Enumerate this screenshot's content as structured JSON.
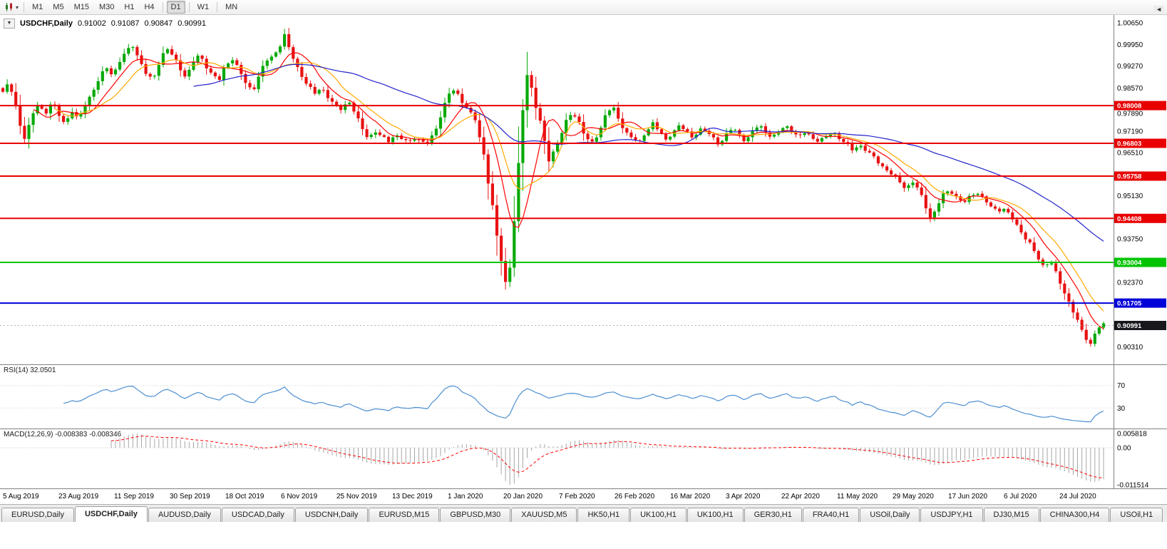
{
  "icons": {
    "collapse": "▼",
    "caret": "▾",
    "tab_scroll_left": "◄"
  },
  "toolbar": {
    "timeframes": [
      "M1",
      "M5",
      "M15",
      "M30",
      "H1",
      "H4",
      "D1",
      "W1",
      "MN"
    ],
    "active_timeframe": "D1"
  },
  "chart_header": {
    "title": "USDCHF,Daily",
    "open": "0.91002",
    "high": "0.91087",
    "low": "0.90847",
    "close": "0.90991"
  },
  "colors": {
    "candle_up": "#07a907",
    "candle_down": "#e81212",
    "macd_hist": "#a6a6a6",
    "separator": "#808080",
    "axis_text": "#000000"
  },
  "chart_data": {
    "type": "candlestick",
    "symbol": "USDCHF",
    "timeframe": "Daily",
    "candle_count": 255,
    "price_range": {
      "top": 1.009,
      "bottom": 0.8975
    },
    "price_axis_labels": [
      "1.00650",
      "0.99950",
      "0.99270",
      "0.98570",
      "0.97890",
      "0.97190",
      "0.96510",
      "0.95130",
      "0.93750",
      "0.92370",
      "0.90310"
    ],
    "hlines": [
      {
        "price": 0.98008,
        "label": "0.98008",
        "color": "#e80000"
      },
      {
        "price": 0.96803,
        "label": "0.96803",
        "color": "#e80000"
      },
      {
        "price": 0.95758,
        "label": "0.95758",
        "color": "#e80000"
      },
      {
        "price": 0.94408,
        "label": "0.94408",
        "color": "#e80000"
      },
      {
        "price": 0.93004,
        "label": "0.93004",
        "color": "#00c400"
      },
      {
        "price": 0.91705,
        "label": "0.91705",
        "color": "#0000d8"
      }
    ],
    "current_price": {
      "price": 0.90991,
      "label": "0.90991",
      "color": "#17171d"
    },
    "date_labels": [
      "5 Aug 2019",
      "23 Aug 2019",
      "11 Sep 2019",
      "30 Sep 2019",
      "18 Oct 2019",
      "6 Nov 2019",
      "25 Nov 2019",
      "13 Dec 2019",
      "1 Jan 2020",
      "20 Jan 2020",
      "7 Feb 2020",
      "26 Feb 2020",
      "16 Mar 2020",
      "3 Apr 2020",
      "22 Apr 2020",
      "11 May 2020",
      "29 May 2020",
      "17 Jun 2020",
      "6 Jul 2020",
      "24 Jul 2020"
    ],
    "ma": [
      {
        "period": 8,
        "color": "#ff0000"
      },
      {
        "period": 13,
        "color": "#ffaa00"
      },
      {
        "period": 45,
        "color": "#2222cc"
      }
    ],
    "rsi": {
      "label": "RSI(14) 32.0501",
      "period": 14,
      "levels": [
        70,
        30
      ],
      "color": "#4d8fd1"
    },
    "macd": {
      "label": "MACD(12,26,9) -0.008383 -0.008346",
      "fast": 12,
      "slow": 26,
      "signal": 9,
      "axis_labels": [
        "0.005818",
        "0.00",
        "-0.011514"
      ]
    },
    "price_path": [
      [
        0.0,
        0.9845
      ],
      [
        0.005,
        0.987
      ],
      [
        0.01,
        0.9825
      ],
      [
        0.015,
        0.9745
      ],
      [
        0.02,
        0.9695
      ],
      [
        0.026,
        0.9765
      ],
      [
        0.032,
        0.9805
      ],
      [
        0.038,
        0.9775
      ],
      [
        0.044,
        0.9812
      ],
      [
        0.05,
        0.9772
      ],
      [
        0.056,
        0.9742
      ],
      [
        0.062,
        0.9788
      ],
      [
        0.068,
        0.9752
      ],
      [
        0.074,
        0.9802
      ],
      [
        0.08,
        0.9842
      ],
      [
        0.087,
        0.9888
      ],
      [
        0.093,
        0.9922
      ],
      [
        0.099,
        0.9898
      ],
      [
        0.105,
        0.9942
      ],
      [
        0.111,
        0.9972
      ],
      [
        0.117,
        0.9992
      ],
      [
        0.123,
        0.9948
      ],
      [
        0.129,
        0.9902
      ],
      [
        0.135,
        0.9878
      ],
      [
        0.141,
        0.9942
      ],
      [
        0.147,
        0.9988
      ],
      [
        0.153,
        0.9958
      ],
      [
        0.159,
        0.9922
      ],
      [
        0.165,
        0.9892
      ],
      [
        0.171,
        0.9938
      ],
      [
        0.177,
        0.9962
      ],
      [
        0.183,
        0.9928
      ],
      [
        0.189,
        0.9898
      ],
      [
        0.195,
        0.9882
      ],
      [
        0.201,
        0.9932
      ],
      [
        0.207,
        0.9952
      ],
      [
        0.213,
        0.9912
      ],
      [
        0.219,
        0.9868
      ],
      [
        0.225,
        0.9848
      ],
      [
        0.231,
        0.9902
      ],
      [
        0.237,
        0.9942
      ],
      [
        0.243,
        0.9958
      ],
      [
        0.249,
        0.9988
      ],
      [
        0.253,
        1.0032
      ],
      [
        0.257,
        0.9988
      ],
      [
        0.263,
        0.9938
      ],
      [
        0.269,
        0.9898
      ],
      [
        0.275,
        0.9862
      ],
      [
        0.281,
        0.9838
      ],
      [
        0.287,
        0.986
      ],
      [
        0.293,
        0.9828
      ],
      [
        0.299,
        0.9798
      ],
      [
        0.305,
        0.9788
      ],
      [
        0.311,
        0.982
      ],
      [
        0.317,
        0.9778
      ],
      [
        0.323,
        0.9728
      ],
      [
        0.329,
        0.9698
      ],
      [
        0.335,
        0.972
      ],
      [
        0.341,
        0.97
      ],
      [
        0.347,
        0.9686
      ],
      [
        0.353,
        0.971
      ],
      [
        0.359,
        0.9696
      ],
      [
        0.365,
        0.968
      ],
      [
        0.371,
        0.97
      ],
      [
        0.377,
        0.9688
      ],
      [
        0.383,
        0.9678
      ],
      [
        0.389,
        0.9718
      ],
      [
        0.395,
        0.9778
      ],
      [
        0.401,
        0.9838
      ],
      [
        0.407,
        0.9848
      ],
      [
        0.413,
        0.9818
      ],
      [
        0.419,
        0.9788
      ],
      [
        0.425,
        0.9758
      ],
      [
        0.429,
        0.9698
      ],
      [
        0.433,
        0.9648
      ],
      [
        0.437,
        0.9558
      ],
      [
        0.441,
        0.9478
      ],
      [
        0.445,
        0.9378
      ],
      [
        0.449,
        0.9298
      ],
      [
        0.453,
        0.9228
      ],
      [
        0.457,
        0.9298
      ],
      [
        0.46,
        0.9418
      ],
      [
        0.463,
        0.9548
      ],
      [
        0.466,
        0.9698
      ],
      [
        0.469,
        0.9818
      ],
      [
        0.472,
        0.9898
      ],
      [
        0.476,
        0.9858
      ],
      [
        0.48,
        0.9798
      ],
      [
        0.484,
        0.9748
      ],
      [
        0.488,
        0.9678
      ],
      [
        0.492,
        0.9618
      ],
      [
        0.496,
        0.9658
      ],
      [
        0.501,
        0.9698
      ],
      [
        0.507,
        0.9748
      ],
      [
        0.513,
        0.9778
      ],
      [
        0.519,
        0.9748
      ],
      [
        0.525,
        0.9698
      ],
      [
        0.531,
        0.9678
      ],
      [
        0.537,
        0.9718
      ],
      [
        0.543,
        0.9778
      ],
      [
        0.549,
        0.9798
      ],
      [
        0.555,
        0.9748
      ],
      [
        0.561,
        0.9718
      ],
      [
        0.567,
        0.9698
      ],
      [
        0.573,
        0.9678
      ],
      [
        0.579,
        0.9718
      ],
      [
        0.585,
        0.9748
      ],
      [
        0.591,
        0.9718
      ],
      [
        0.597,
        0.9688
      ],
      [
        0.603,
        0.9718
      ],
      [
        0.609,
        0.9738
      ],
      [
        0.615,
        0.9718
      ],
      [
        0.621,
        0.9698
      ],
      [
        0.627,
        0.9728
      ],
      [
        0.633,
        0.9718
      ],
      [
        0.639,
        0.9698
      ],
      [
        0.645,
        0.9678
      ],
      [
        0.651,
        0.9708
      ],
      [
        0.657,
        0.9728
      ],
      [
        0.663,
        0.9708
      ],
      [
        0.669,
        0.9688
      ],
      [
        0.675,
        0.9718
      ],
      [
        0.681,
        0.9738
      ],
      [
        0.687,
        0.9718
      ],
      [
        0.693,
        0.9698
      ],
      [
        0.699,
        0.9718
      ],
      [
        0.705,
        0.9738
      ],
      [
        0.711,
        0.9718
      ],
      [
        0.717,
        0.9698
      ],
      [
        0.723,
        0.9718
      ],
      [
        0.729,
        0.9698
      ],
      [
        0.735,
        0.9688
      ],
      [
        0.741,
        0.9698
      ],
      [
        0.747,
        0.9718
      ],
      [
        0.753,
        0.9698
      ],
      [
        0.759,
        0.9678
      ],
      [
        0.765,
        0.9658
      ],
      [
        0.771,
        0.9678
      ],
      [
        0.777,
        0.9658
      ],
      [
        0.783,
        0.9638
      ],
      [
        0.789,
        0.9618
      ],
      [
        0.795,
        0.9598
      ],
      [
        0.801,
        0.9578
      ],
      [
        0.807,
        0.9558
      ],
      [
        0.813,
        0.9538
      ],
      [
        0.819,
        0.9558
      ],
      [
        0.825,
        0.9528
      ],
      [
        0.831,
        0.9478
      ],
      [
        0.836,
        0.9438
      ],
      [
        0.841,
        0.9478
      ],
      [
        0.847,
        0.9518
      ],
      [
        0.853,
        0.9532
      ],
      [
        0.859,
        0.9508
      ],
      [
        0.865,
        0.9488
      ],
      [
        0.871,
        0.9512
      ],
      [
        0.877,
        0.9528
      ],
      [
        0.883,
        0.9502
      ],
      [
        0.889,
        0.9478
      ],
      [
        0.895,
        0.9468
      ],
      [
        0.901,
        0.9472
      ],
      [
        0.907,
        0.9448
      ],
      [
        0.913,
        0.9418
      ],
      [
        0.919,
        0.9388
      ],
      [
        0.925,
        0.9358
      ],
      [
        0.931,
        0.9318
      ],
      [
        0.937,
        0.9288
      ],
      [
        0.943,
        0.9308
      ],
      [
        0.949,
        0.9258
      ],
      [
        0.955,
        0.9208
      ],
      [
        0.961,
        0.9168
      ],
      [
        0.967,
        0.9118
      ],
      [
        0.973,
        0.9068
      ],
      [
        0.979,
        0.9038
      ],
      [
        0.985,
        0.9092
      ],
      [
        0.991,
        0.9099
      ]
    ]
  },
  "tabs": {
    "items": [
      "EURUSD,Daily",
      "USDCHF,Daily",
      "AUDUSD,Daily",
      "USDCAD,Daily",
      "USDCNH,Daily",
      "EURUSD,M15",
      "GBPUSD,M30",
      "XAUUSD,M5",
      "HK50,H1",
      "UK100,H1",
      "UK100,H1",
      "GER30,H1",
      "FRA40,H1",
      "USOil,Daily",
      "USDJPY,H1",
      "DJ30,M15",
      "CHINA300,H4",
      "USOil,H1"
    ],
    "active": "USDCHF,Daily"
  }
}
